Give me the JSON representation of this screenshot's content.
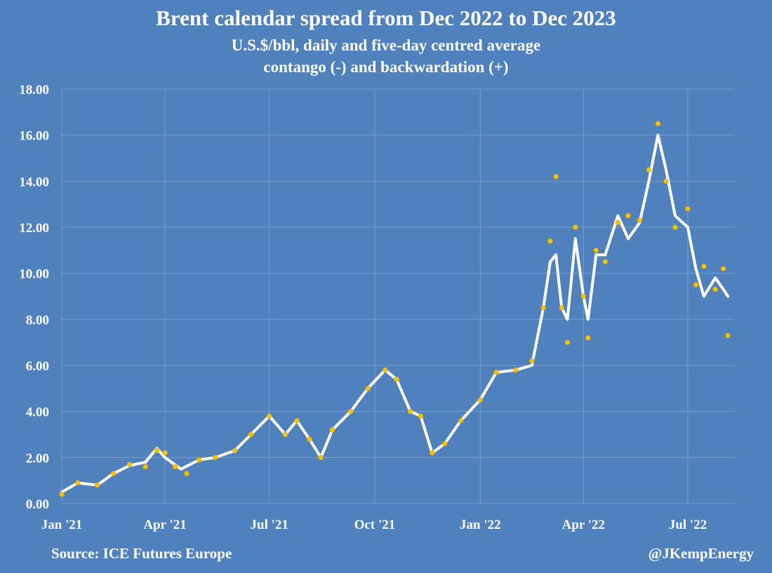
{
  "chart_data": {
    "type": "line",
    "title": "Brent calendar spread from Dec 2022 to Dec 2023",
    "subtitle": [
      "U.S.$/bbl, daily and five-day centred average",
      "contango (-) and backwardation (+)"
    ],
    "xlabel": "",
    "ylabel": "",
    "ylim": [
      0,
      18
    ],
    "yticks": [
      "0.00",
      "2.00",
      "4.00",
      "6.00",
      "8.00",
      "10.00",
      "12.00",
      "14.00",
      "16.00",
      "18.00"
    ],
    "x_ticks": [
      {
        "label": "Jan '21",
        "date": "2021-01-01"
      },
      {
        "label": "Apr '21",
        "date": "2021-04-01"
      },
      {
        "label": "Jul '21",
        "date": "2021-07-01"
      },
      {
        "label": "Oct '21",
        "date": "2021-10-01"
      },
      {
        "label": "Jan '22",
        "date": "2022-01-01"
      },
      {
        "label": "Apr '22",
        "date": "2022-04-01"
      },
      {
        "label": "Jul '22",
        "date": "2022-07-01"
      }
    ],
    "xlim": [
      "2021-01-01",
      "2022-08-11"
    ],
    "grid": true,
    "colors": {
      "background": "#4f81bd",
      "daily": "#f4c20d",
      "average": "#ffffff",
      "grid": "#7a9fd0"
    },
    "series": [
      {
        "name": "",
        "style": "daily dots",
        "points": [
          [
            "2021-01-01",
            0.4
          ],
          [
            "2021-01-15",
            0.9
          ],
          [
            "2021-02-01",
            0.8
          ],
          [
            "2021-02-15",
            1.3
          ],
          [
            "2021-03-01",
            1.7
          ],
          [
            "2021-03-15",
            1.6
          ],
          [
            "2021-03-25",
            2.3
          ],
          [
            "2021-04-01",
            2.2
          ],
          [
            "2021-04-10",
            1.6
          ],
          [
            "2021-04-20",
            1.3
          ],
          [
            "2021-05-01",
            1.9
          ],
          [
            "2021-05-15",
            2.0
          ],
          [
            "2021-06-01",
            2.3
          ],
          [
            "2021-06-15",
            3.0
          ],
          [
            "2021-07-01",
            3.8
          ],
          [
            "2021-07-15",
            3.0
          ],
          [
            "2021-07-25",
            3.6
          ],
          [
            "2021-08-05",
            2.8
          ],
          [
            "2021-08-15",
            2.0
          ],
          [
            "2021-08-25",
            3.2
          ],
          [
            "2021-09-10",
            4.0
          ],
          [
            "2021-09-25",
            5.0
          ],
          [
            "2021-10-10",
            5.8
          ],
          [
            "2021-10-20",
            5.4
          ],
          [
            "2021-11-01",
            4.0
          ],
          [
            "2021-11-10",
            3.8
          ],
          [
            "2021-11-20",
            2.2
          ],
          [
            "2021-12-01",
            2.6
          ],
          [
            "2021-12-15",
            3.6
          ],
          [
            "2022-01-01",
            4.5
          ],
          [
            "2022-01-15",
            5.7
          ],
          [
            "2022-02-01",
            5.8
          ],
          [
            "2022-02-15",
            6.2
          ],
          [
            "2022-02-25",
            8.5
          ],
          [
            "2022-03-03",
            11.4
          ],
          [
            "2022-03-08",
            14.2
          ],
          [
            "2022-03-13",
            8.5
          ],
          [
            "2022-03-18",
            7.0
          ],
          [
            "2022-03-25",
            12.0
          ],
          [
            "2022-04-01",
            9.0
          ],
          [
            "2022-04-05",
            7.2
          ],
          [
            "2022-04-12",
            11.0
          ],
          [
            "2022-04-20",
            10.5
          ],
          [
            "2022-05-01",
            12.2
          ],
          [
            "2022-05-10",
            12.5
          ],
          [
            "2022-05-20",
            12.3
          ],
          [
            "2022-05-28",
            14.5
          ],
          [
            "2022-06-05",
            16.5
          ],
          [
            "2022-06-12",
            14.0
          ],
          [
            "2022-06-20",
            12.0
          ],
          [
            "2022-07-01",
            12.8
          ],
          [
            "2022-07-08",
            9.5
          ],
          [
            "2022-07-15",
            10.3
          ],
          [
            "2022-07-25",
            9.3
          ],
          [
            "2022-08-01",
            10.2
          ],
          [
            "2022-08-05",
            7.3
          ]
        ]
      },
      {
        "name": "",
        "style": "five-day centred average line",
        "points": [
          [
            "2021-01-01",
            0.5
          ],
          [
            "2021-01-15",
            0.9
          ],
          [
            "2021-02-01",
            0.8
          ],
          [
            "2021-02-15",
            1.3
          ],
          [
            "2021-03-01",
            1.65
          ],
          [
            "2021-03-15",
            1.8
          ],
          [
            "2021-03-25",
            2.4
          ],
          [
            "2021-04-01",
            2.0
          ],
          [
            "2021-04-15",
            1.5
          ],
          [
            "2021-05-01",
            1.9
          ],
          [
            "2021-05-15",
            2.0
          ],
          [
            "2021-06-01",
            2.3
          ],
          [
            "2021-06-15",
            3.0
          ],
          [
            "2021-07-01",
            3.8
          ],
          [
            "2021-07-15",
            3.0
          ],
          [
            "2021-07-25",
            3.6
          ],
          [
            "2021-08-05",
            2.8
          ],
          [
            "2021-08-15",
            2.0
          ],
          [
            "2021-08-25",
            3.2
          ],
          [
            "2021-09-10",
            4.0
          ],
          [
            "2021-09-25",
            5.0
          ],
          [
            "2021-10-10",
            5.8
          ],
          [
            "2021-10-20",
            5.4
          ],
          [
            "2021-11-01",
            4.0
          ],
          [
            "2021-11-10",
            3.8
          ],
          [
            "2021-11-20",
            2.2
          ],
          [
            "2021-12-01",
            2.6
          ],
          [
            "2021-12-15",
            3.6
          ],
          [
            "2022-01-01",
            4.5
          ],
          [
            "2022-01-15",
            5.7
          ],
          [
            "2022-02-01",
            5.8
          ],
          [
            "2022-02-15",
            6.0
          ],
          [
            "2022-02-25",
            8.5
          ],
          [
            "2022-03-03",
            10.5
          ],
          [
            "2022-03-08",
            10.8
          ],
          [
            "2022-03-13",
            8.5
          ],
          [
            "2022-03-18",
            8.0
          ],
          [
            "2022-03-25",
            11.5
          ],
          [
            "2022-04-01",
            9.0
          ],
          [
            "2022-04-05",
            8.0
          ],
          [
            "2022-04-12",
            10.8
          ],
          [
            "2022-04-20",
            10.8
          ],
          [
            "2022-05-01",
            12.5
          ],
          [
            "2022-05-10",
            11.5
          ],
          [
            "2022-05-20",
            12.2
          ],
          [
            "2022-05-28",
            14.0
          ],
          [
            "2022-06-05",
            16.0
          ],
          [
            "2022-06-12",
            14.5
          ],
          [
            "2022-06-20",
            12.5
          ],
          [
            "2022-07-01",
            12.0
          ],
          [
            "2022-07-08",
            10.2
          ],
          [
            "2022-07-15",
            9.0
          ],
          [
            "2022-07-25",
            9.8
          ],
          [
            "2022-08-01",
            9.3
          ],
          [
            "2022-08-05",
            9.0
          ]
        ]
      }
    ]
  },
  "footer": {
    "source": "Source: ICE Futures Europe",
    "handle": "@JKempEnergy"
  }
}
